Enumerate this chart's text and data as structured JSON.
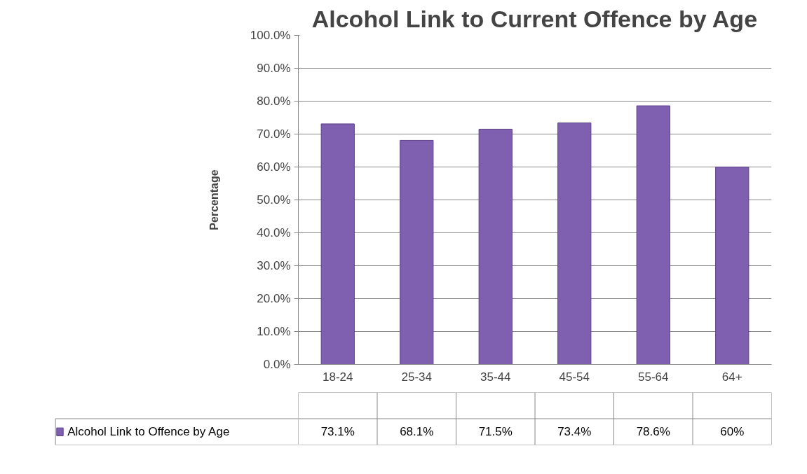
{
  "chart_data": {
    "type": "bar",
    "title": "Alcohol Link to Current Offence by Age",
    "ylabel": "Percentage",
    "categories": [
      "18-24",
      "25-34",
      "35-44",
      "45-54",
      "55-64",
      "64+"
    ],
    "series": [
      {
        "name": "Alcohol Link to Offence by Age",
        "color": "#7f5fb0",
        "values": [
          73.1,
          68.1,
          71.5,
          73.4,
          78.6,
          60
        ],
        "value_labels": [
          "73.1%",
          "68.1%",
          "71.5%",
          "73.4%",
          "78.6%",
          "60%"
        ]
      }
    ],
    "ylim": [
      0,
      100
    ],
    "yticks": [
      {
        "value": 0,
        "label": "0.0%"
      },
      {
        "value": 10,
        "label": "10.0%"
      },
      {
        "value": 20,
        "label": "20.0%"
      },
      {
        "value": 30,
        "label": "30.0%"
      },
      {
        "value": 40,
        "label": "40.0%"
      },
      {
        "value": 50,
        "label": "50.0%"
      },
      {
        "value": 60,
        "label": "60.0%"
      },
      {
        "value": 70,
        "label": "70.0%"
      },
      {
        "value": 80,
        "label": "80.0%"
      },
      {
        "value": 90,
        "label": "90.0%"
      },
      {
        "value": 100,
        "label": "100.0%"
      }
    ],
    "grid": "y",
    "legend": "bottom"
  }
}
